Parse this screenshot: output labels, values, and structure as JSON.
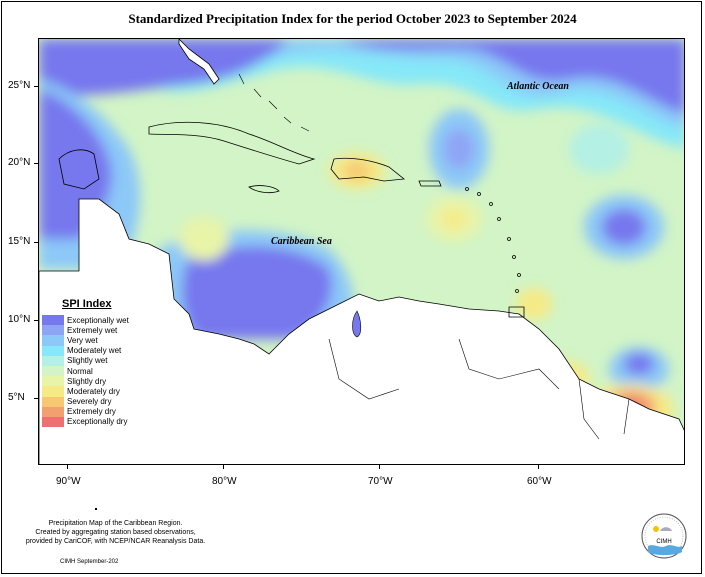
{
  "title": "Standardized Precipitation Index for the period October 2023 to September 2024",
  "lat_labels": [
    "25°N",
    "20°N",
    "15°N",
    "10°N",
    "5°N"
  ],
  "lon_labels": [
    "90°W",
    "80°W",
    "70°W",
    "60°W"
  ],
  "ocean_labels": {
    "atlantic": "Atlantic Ocean",
    "caribbean": "Caribbean Sea"
  },
  "legend": {
    "title": "SPI Index",
    "items": [
      {
        "label": "Exceptionally wet",
        "color": "#7777ee"
      },
      {
        "label": "Extremely wet",
        "color": "#8fa4f5"
      },
      {
        "label": "Very wet",
        "color": "#8cc8f8"
      },
      {
        "label": "Moderately wet",
        "color": "#86e8f8"
      },
      {
        "label": "Slightly wet",
        "color": "#b4f0e4"
      },
      {
        "label": "Normal",
        "color": "#d2f4c6"
      },
      {
        "label": "Slightly dry",
        "color": "#e8f4a8"
      },
      {
        "label": "Moderately dry",
        "color": "#f6ea86"
      },
      {
        "label": "Severely dry",
        "color": "#f6c872"
      },
      {
        "label": "Extremely dry",
        "color": "#f3a070"
      },
      {
        "label": "Exceptionally dry",
        "color": "#ee7070"
      }
    ]
  },
  "credit": {
    "line1": "Precipitation Map of the Caribbean Region.",
    "line2": "Created by aggregating station based observations,",
    "line3": "provided by CariCOF, with NCEP/NCAR Reanalysis Data."
  },
  "footer": "CIMH September-202",
  "logo_text": "CIMH"
}
